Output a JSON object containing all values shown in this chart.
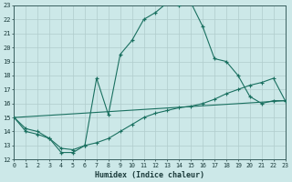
{
  "xlabel": "Humidex (Indice chaleur)",
  "bg_color": "#cce8e8",
  "grid_color_major": "#b0cccc",
  "grid_color_minor": "#b8d4d4",
  "line_color": "#1a7060",
  "xlim": [
    0,
    23
  ],
  "ylim": [
    12,
    23
  ],
  "yticks": [
    12,
    13,
    14,
    15,
    16,
    17,
    18,
    19,
    20,
    21,
    22,
    23
  ],
  "xticks": [
    0,
    1,
    2,
    3,
    4,
    5,
    6,
    7,
    8,
    9,
    10,
    11,
    12,
    13,
    14,
    15,
    16,
    17,
    18,
    19,
    20,
    21,
    22,
    23
  ],
  "line1_x": [
    0,
    1,
    2,
    3,
    4,
    5,
    6,
    7,
    8,
    9,
    10,
    11,
    12,
    13,
    14,
    15,
    16,
    17,
    18,
    19,
    20,
    21,
    22,
    23
  ],
  "line1_y": [
    15,
    14,
    13.8,
    13.5,
    12.5,
    12.5,
    13,
    17.8,
    15.2,
    19.5,
    20.5,
    22,
    22.5,
    23.2,
    23,
    23.2,
    21.5,
    19.2,
    19,
    18,
    16.5,
    16.0,
    16.2,
    16.2
  ],
  "line2_x": [
    0,
    1,
    2,
    3,
    4,
    5,
    6,
    7,
    8,
    9,
    10,
    11,
    12,
    13,
    14,
    15,
    16,
    17,
    18,
    19,
    20,
    21,
    22,
    23
  ],
  "line2_y": [
    15,
    14.2,
    14.0,
    13.5,
    12.8,
    12.7,
    13.0,
    13.2,
    13.5,
    14.0,
    14.5,
    15.0,
    15.3,
    15.5,
    15.7,
    15.8,
    16.0,
    16.3,
    16.7,
    17.0,
    17.3,
    17.5,
    17.8,
    16.2
  ],
  "line3_x": [
    0,
    23
  ],
  "line3_y": [
    15,
    16.2
  ]
}
